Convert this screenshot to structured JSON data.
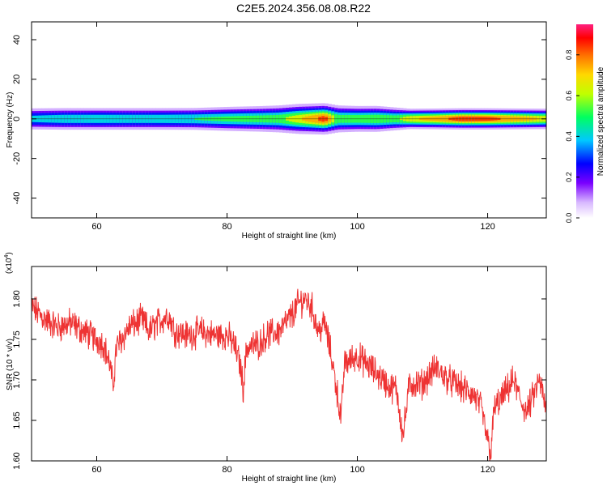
{
  "title": "C2E5.2024.356.08.08.R22",
  "chart_data": [
    {
      "type": "heatmap",
      "xlabel": "Height of straight line (km)",
      "ylabel": "Frequency (Hz)",
      "xlim": [
        50,
        129
      ],
      "ylim": [
        -50,
        49
      ],
      "xticks": [
        60,
        80,
        100,
        120
      ],
      "yticks": [
        40,
        20,
        0,
        -20,
        -40
      ],
      "ytick_labels": [
        "40",
        "20",
        "0",
        "-20",
        "-40"
      ],
      "colorbar": {
        "label": "Normalized spectral amplitude",
        "range": [
          0.0,
          0.95
        ],
        "ticks": [
          0.0,
          0.2,
          0.4,
          0.6,
          0.8
        ],
        "tick_labels": [
          "0.0",
          "0.2",
          "0.4",
          "0.6",
          "0.8"
        ]
      },
      "ridge_frequency_hz": 0,
      "ridge_profile": [
        {
          "x": 50,
          "amp": 0.45,
          "width_hz": 3.5
        },
        {
          "x": 55,
          "amp": 0.5,
          "width_hz": 3.5
        },
        {
          "x": 60,
          "amp": 0.5,
          "width_hz": 3.5
        },
        {
          "x": 65,
          "amp": 0.5,
          "width_hz": 3.5
        },
        {
          "x": 70,
          "amp": 0.5,
          "width_hz": 3.5
        },
        {
          "x": 75,
          "amp": 0.52,
          "width_hz": 3.5
        },
        {
          "x": 80,
          "amp": 0.55,
          "width_hz": 3.8
        },
        {
          "x": 85,
          "amp": 0.58,
          "width_hz": 4.0
        },
        {
          "x": 88,
          "amp": 0.6,
          "width_hz": 4.2
        },
        {
          "x": 91,
          "amp": 0.72,
          "width_hz": 4.5
        },
        {
          "x": 93,
          "amp": 0.8,
          "width_hz": 4.5
        },
        {
          "x": 95,
          "amp": 0.9,
          "width_hz": 4.5
        },
        {
          "x": 97,
          "amp": 0.6,
          "width_hz": 4.2
        },
        {
          "x": 100,
          "amp": 0.6,
          "width_hz": 4.0
        },
        {
          "x": 103,
          "amp": 0.62,
          "width_hz": 4.0
        },
        {
          "x": 106,
          "amp": 0.6,
          "width_hz": 3.5
        },
        {
          "x": 108,
          "amp": 0.72,
          "width_hz": 3.0
        },
        {
          "x": 112,
          "amp": 0.78,
          "width_hz": 3.0
        },
        {
          "x": 116,
          "amp": 0.9,
          "width_hz": 3.0
        },
        {
          "x": 120,
          "amp": 0.88,
          "width_hz": 3.0
        },
        {
          "x": 124,
          "amp": 0.8,
          "width_hz": 3.0
        },
        {
          "x": 129,
          "amp": 0.72,
          "width_hz": 3.0
        }
      ]
    },
    {
      "type": "line",
      "color": "#ee3333",
      "xlabel": "Height of straight line (km)",
      "ylabel": "SNR (10 * v/v)",
      "scale_label": "(x10",
      "scale_exponent": "4",
      "xlim": [
        50,
        129
      ],
      "ylim": [
        1.6,
        1.84
      ],
      "xticks": [
        60,
        80,
        100,
        120
      ],
      "yticks": [
        1.8,
        1.75,
        1.7,
        1.65,
        1.6
      ],
      "ytick_labels": [
        "1.80",
        "1.75",
        "1.70",
        "1.65",
        "1.60"
      ],
      "series": [
        {
          "x": [
            50,
            52,
            54,
            56,
            58,
            60,
            61,
            62,
            62.5,
            63,
            65,
            67,
            68,
            70,
            71,
            72,
            74,
            76,
            78,
            80,
            81,
            82,
            82.5,
            83,
            85,
            86,
            88,
            90,
            91,
            92,
            93,
            94,
            95,
            96,
            97,
            97.5,
            98,
            100,
            102,
            104,
            105,
            106,
            107,
            108,
            110,
            112,
            114,
            116,
            118,
            119,
            120,
            120.5,
            121,
            122,
            124,
            125,
            126,
            127,
            128,
            129
          ],
          "y": [
            1.79,
            1.775,
            1.765,
            1.77,
            1.76,
            1.75,
            1.745,
            1.72,
            1.69,
            1.74,
            1.765,
            1.775,
            1.76,
            1.775,
            1.78,
            1.76,
            1.755,
            1.76,
            1.755,
            1.755,
            1.745,
            1.72,
            1.69,
            1.74,
            1.745,
            1.755,
            1.76,
            1.78,
            1.795,
            1.8,
            1.79,
            1.76,
            1.77,
            1.73,
            1.68,
            1.65,
            1.72,
            1.73,
            1.715,
            1.7,
            1.69,
            1.69,
            1.63,
            1.695,
            1.695,
            1.715,
            1.7,
            1.69,
            1.68,
            1.665,
            1.625,
            1.61,
            1.665,
            1.675,
            1.7,
            1.675,
            1.66,
            1.68,
            1.7,
            1.66
          ]
        }
      ]
    }
  ]
}
